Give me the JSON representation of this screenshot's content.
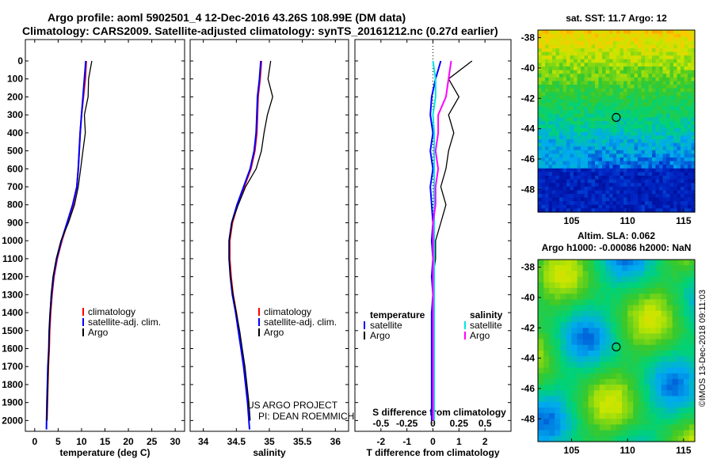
{
  "header": {
    "title_line1": "Argo profile: aoml 5902501_4 12-Dec-2016 43.26S 108.99E (DM data)",
    "title_line2": "Climatology: CARS2009. Satellite-adjusted climatology: synTS_20161212.nc (0.27d earlier)"
  },
  "colors": {
    "climatology": "#ff0000",
    "satellite_adj": "#0000ff",
    "argo": "#000000",
    "salinity_satellite": "#00e5e5",
    "salinity_argo": "#ff00ff"
  },
  "chart_data": [
    {
      "type": "line",
      "xlabel": "temperature (deg C)",
      "ylabel": "",
      "xlim": [
        -2,
        32
      ],
      "ylim": [
        2060,
        0
      ],
      "xticks": [
        0,
        5,
        10,
        15,
        20,
        25,
        30
      ],
      "yticks": [
        0,
        100,
        200,
        300,
        400,
        500,
        600,
        700,
        800,
        900,
        1000,
        1100,
        1200,
        1300,
        1400,
        1500,
        1600,
        1700,
        1800,
        1900,
        2000
      ],
      "legend": [
        "climatology",
        "satellite-adj. clim.",
        "Argo"
      ],
      "legend_position": "lower-right",
      "series": [
        {
          "name": "climatology",
          "x": [
            11.0,
            10.8,
            10.4,
            10.0,
            9.7,
            9.5,
            9.3,
            9.0,
            8.2,
            7.0,
            5.8,
            4.8,
            4.1,
            3.7,
            3.4,
            3.2,
            3.1,
            2.9,
            2.8,
            2.7,
            2.6
          ],
          "y": [
            0,
            100,
            200,
            300,
            400,
            500,
            600,
            700,
            800,
            900,
            1000,
            1100,
            1200,
            1300,
            1400,
            1500,
            1600,
            1700,
            1800,
            1900,
            2000
          ]
        },
        {
          "name": "satellite-adj. clim.",
          "x": [
            10.9,
            10.6,
            10.3,
            10.0,
            9.7,
            9.5,
            9.3,
            9.0,
            8.1,
            6.9,
            5.7,
            4.7,
            4.0,
            3.6,
            3.3,
            3.1,
            3.0,
            2.8,
            2.7,
            2.6,
            2.5
          ],
          "y": [
            0,
            100,
            200,
            300,
            400,
            500,
            600,
            700,
            800,
            900,
            1000,
            1100,
            1200,
            1300,
            1400,
            1500,
            1600,
            1700,
            1800,
            1900,
            2050
          ]
        },
        {
          "name": "Argo",
          "x": [
            12.2,
            11.5,
            11.4,
            10.6,
            10.8,
            10.3,
            9.8,
            9.3,
            8.5,
            7.2,
            5.6,
            4.6,
            3.9,
            3.5,
            3.3,
            3.1,
            3.0,
            2.9,
            2.8,
            2.7,
            2.6
          ],
          "y": [
            0,
            100,
            200,
            300,
            400,
            500,
            600,
            700,
            800,
            900,
            1000,
            1100,
            1200,
            1300,
            1400,
            1500,
            1600,
            1700,
            1800,
            1900,
            2000
          ]
        }
      ]
    },
    {
      "type": "line",
      "xlabel": "salinity",
      "xlim": [
        33.8,
        36.2
      ],
      "ylim": [
        2060,
        0
      ],
      "xticks": [
        34,
        34.5,
        35,
        35.5,
        36
      ],
      "legend": [
        "climatology",
        "satellite-adj. clim.",
        "Argo"
      ],
      "legend_position": "lower-right",
      "annotations": [
        "US ARGO PROJECT",
        "PI: DEAN ROEMMICH"
      ],
      "series": [
        {
          "name": "climatology",
          "x": [
            34.88,
            34.86,
            34.83,
            34.82,
            34.81,
            34.78,
            34.72,
            34.62,
            34.52,
            34.44,
            34.4,
            34.4,
            34.42,
            34.45,
            34.5,
            34.54,
            34.58,
            34.62,
            34.65,
            34.68,
            34.7
          ],
          "y": [
            0,
            100,
            200,
            300,
            400,
            500,
            600,
            700,
            800,
            900,
            1000,
            1100,
            1200,
            1300,
            1400,
            1500,
            1600,
            1700,
            1800,
            1900,
            2000
          ]
        },
        {
          "name": "satellite-adj. clim.",
          "x": [
            34.87,
            34.85,
            34.82,
            34.81,
            34.8,
            34.77,
            34.71,
            34.61,
            34.51,
            34.43,
            34.39,
            34.39,
            34.41,
            34.44,
            34.49,
            34.53,
            34.57,
            34.61,
            34.64,
            34.67,
            34.7
          ],
          "y": [
            0,
            100,
            200,
            300,
            400,
            500,
            600,
            700,
            800,
            900,
            1000,
            1100,
            1200,
            1300,
            1400,
            1500,
            1600,
            1700,
            1800,
            1900,
            2050
          ]
        },
        {
          "name": "Argo",
          "x": [
            35.02,
            34.98,
            35.05,
            34.97,
            34.92,
            34.88,
            34.8,
            34.64,
            34.53,
            34.43,
            34.39,
            34.39,
            34.41,
            34.45,
            34.5,
            34.55,
            34.59,
            34.63,
            34.66,
            34.69,
            34.71
          ],
          "y": [
            0,
            100,
            200,
            300,
            400,
            500,
            600,
            700,
            800,
            900,
            1000,
            1100,
            1200,
            1300,
            1400,
            1500,
            1600,
            1700,
            1800,
            1900,
            2000
          ]
        }
      ]
    },
    {
      "type": "line",
      "xlabel": "T difference from climatology",
      "xlabel_top": "S difference from climatology",
      "xlim": [
        -3,
        3
      ],
      "ylim": [
        2060,
        0
      ],
      "xticks": [
        -2,
        -1,
        0,
        1,
        2
      ],
      "xticks_top_labels": [
        "-0.5",
        "-0.25",
        "0",
        "0.25",
        "0.5"
      ],
      "xticks_top": [
        -2,
        -1,
        0,
        1,
        2
      ],
      "legend_temperature_title": "temperature",
      "legend_salinity_title": "salinity",
      "legend": [
        "satellite",
        "Argo",
        "satellite",
        "Argo"
      ],
      "series": [
        {
          "name": "satellite",
          "x": [
            0.3,
            0.1,
            -0.05,
            -0.1,
            0.0,
            -0.1,
            0.0,
            -0.1,
            -0.05,
            0.0,
            -0.05,
            0.0,
            -0.05,
            0.0,
            -0.05,
            -0.05,
            -0.05,
            -0.05,
            -0.05,
            -0.05,
            -0.05
          ],
          "y": [
            0,
            100,
            200,
            300,
            400,
            500,
            600,
            700,
            800,
            900,
            1000,
            1100,
            1200,
            1300,
            1400,
            1500,
            1600,
            1700,
            1800,
            1900,
            2000
          ]
        },
        {
          "name": "Argo",
          "x": [
            1.5,
            0.6,
            1.0,
            0.6,
            0.8,
            0.6,
            0.5,
            0.3,
            0.5,
            0.3,
            0.1,
            0.1,
            0.0,
            0.0,
            0.0,
            0.0,
            0.0,
            0.0,
            0.0,
            0.0,
            0.0
          ],
          "y": [
            0,
            100,
            200,
            300,
            400,
            500,
            600,
            700,
            800,
            900,
            1000,
            1100,
            1200,
            1300,
            1400,
            1500,
            1600,
            1700,
            1800,
            1900,
            2000
          ]
        },
        {
          "name": "satellite",
          "x": [
            0.0,
            0.1,
            0.1,
            0.0,
            0.05,
            0.05,
            0.05,
            0.05,
            0.05,
            0.05,
            0.05,
            0.05,
            0.05,
            0.05,
            0.05,
            0.05,
            0.05,
            0.05,
            0.05,
            0.05,
            0.05
          ],
          "y": [
            0,
            100,
            200,
            300,
            400,
            500,
            600,
            700,
            800,
            900,
            1000,
            1100,
            1200,
            1300,
            1400,
            1500,
            1600,
            1700,
            1800,
            1900,
            2000
          ]
        },
        {
          "name": "Argo",
          "x": [
            0.7,
            0.6,
            0.5,
            0.2,
            0.2,
            0.1,
            0.2,
            0.1,
            0.1,
            0.0,
            0.0,
            0.0,
            0.0,
            0.0,
            0.0,
            0.0,
            0.0,
            0.0,
            0.0,
            0.0,
            0.0
          ],
          "y": [
            0,
            100,
            200,
            300,
            400,
            500,
            600,
            700,
            800,
            900,
            1000,
            1100,
            1200,
            1300,
            1400,
            1500,
            1600,
            1700,
            1800,
            1900,
            2000
          ]
        }
      ]
    },
    {
      "type": "heatmap",
      "title": "sat. SST: 11.7 Argo: 12",
      "xlim": [
        102,
        116
      ],
      "ylim": [
        -49.5,
        -37.5
      ],
      "xticks": [
        105,
        110,
        115
      ],
      "yticks": [
        -38,
        -40,
        -42,
        -44,
        -46,
        -48
      ],
      "marker": {
        "x": 108.99,
        "y": -43.26
      }
    },
    {
      "type": "heatmap",
      "title_line1": "Altim. SLA: 0.062",
      "title_line2": "Argo h1000: -0.00086 h2000: NaN",
      "xlim": [
        102,
        116
      ],
      "ylim": [
        -49.5,
        -37.5
      ],
      "xticks": [
        105,
        110,
        115
      ],
      "yticks": [
        -38,
        -40,
        -42,
        -44,
        -46,
        -48
      ],
      "marker": {
        "x": 108.99,
        "y": -43.26
      }
    }
  ],
  "footer": {
    "watermark": "©IMOS 13-Dec-2018 09:11:03"
  }
}
